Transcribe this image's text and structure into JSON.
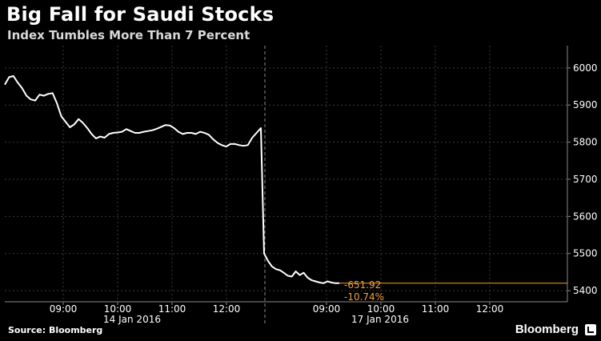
{
  "header": {
    "title": "Big Fall for Saudi Stocks",
    "subtitle": "Index Tumbles More Than 7 Percent"
  },
  "footer": {
    "source": "Source: Bloomberg",
    "brand": "Bloomberg",
    "brand_icon": "bloomberg-logo-icon"
  },
  "colors": {
    "background": "#000000",
    "line": "#ffffff",
    "grid": "#3a3a3a",
    "accent": "#f0a030"
  },
  "chart_data": {
    "type": "line",
    "title": "Big Fall for Saudi Stocks",
    "subtitle": "Index Tumbles More Than 7 Percent",
    "ylim": [
      5370,
      6060
    ],
    "y_ticks": [
      6000,
      5900,
      5800,
      5700,
      5600,
      5500,
      5400
    ],
    "grid": true,
    "y_axis_side": "right",
    "sessions": [
      {
        "label": "14 Jan 2016",
        "x_ticks": [
          "09:00",
          "10:00",
          "11:00",
          "12:00"
        ]
      },
      {
        "label": "17 Jan 2016",
        "x_ticks": [
          "09:00",
          "10:00",
          "11:00",
          "12:00"
        ]
      }
    ],
    "series": [
      {
        "values": [
          5955,
          5975,
          5978,
          5960,
          5945,
          5925,
          5915,
          5912,
          5928,
          5925,
          5930,
          5932,
          5905,
          5870,
          5855,
          5840,
          5848,
          5862,
          5852,
          5838,
          5822,
          5810,
          5815,
          5812,
          5822,
          5825,
          5826,
          5828,
          5835,
          5830,
          5825,
          5825,
          5828,
          5830,
          5832,
          5836,
          5841,
          5846,
          5845,
          5838,
          5828,
          5822,
          5825,
          5825,
          5822,
          5828,
          5825,
          5820,
          5808,
          5798,
          5792,
          5788,
          5795,
          5795,
          5792,
          5790,
          5792,
          5812,
          5825,
          5838,
          5500,
          5480,
          5465,
          5458,
          5455,
          5448,
          5440,
          5438,
          5452,
          5442,
          5448,
          5435,
          5428,
          5425,
          5422,
          5420,
          5425,
          5422,
          5420,
          5420
        ]
      }
    ],
    "session_break_index": 59,
    "annotation": {
      "change": "-651.92",
      "percent": "-10.74%",
      "last_value": 5420
    }
  }
}
